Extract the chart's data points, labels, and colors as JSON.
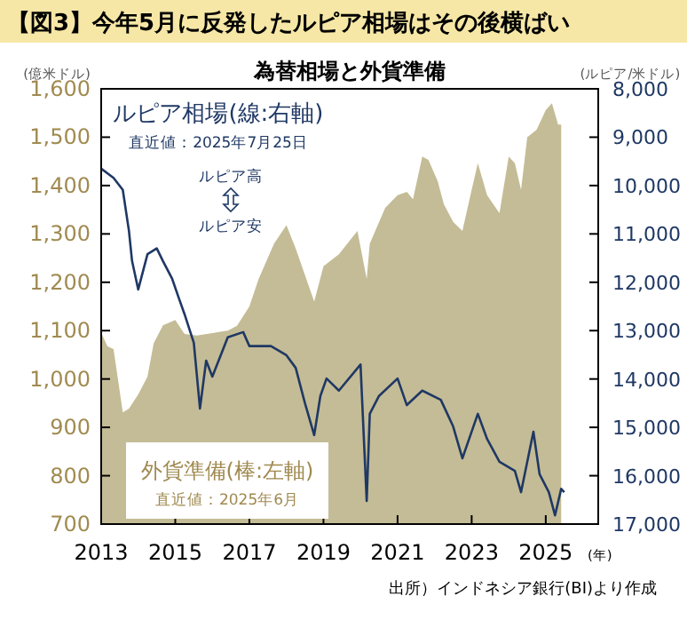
{
  "chart_data": {
    "type": "area",
    "title": "【図3】今年5月に反発したルピア相場はその後横ばい",
    "subtitle": "為替相場と外貨準備",
    "ylabel": "(億米ドル)",
    "y2label": "(ルピア/米ドル)",
    "xlabel": "(年)",
    "xlim": [
      "2013-01",
      "2026-06"
    ],
    "xticks": [
      {
        "value": "2013-01",
        "label": "2013"
      },
      {
        "value": "2015-01",
        "label": "2015"
      },
      {
        "value": "2017-01",
        "label": "2017"
      },
      {
        "value": "2019-01",
        "label": "2019"
      },
      {
        "value": "2021-01",
        "label": "2021"
      },
      {
        "value": "2023-01",
        "label": "2023"
      },
      {
        "value": "2025-01",
        "label": "2025"
      }
    ],
    "ylim": [
      700,
      1600
    ],
    "yticks": [
      {
        "value": 700,
        "label": "700"
      },
      {
        "value": 800,
        "label": "800"
      },
      {
        "value": 900,
        "label": "900"
      },
      {
        "value": 1000,
        "label": "1,000"
      },
      {
        "value": 1100,
        "label": "1,100"
      },
      {
        "value": 1200,
        "label": "1,200"
      },
      {
        "value": 1300,
        "label": "1,300"
      },
      {
        "value": 1400,
        "label": "1,400"
      },
      {
        "value": 1500,
        "label": "1,500"
      },
      {
        "value": 1600,
        "label": "1,600"
      }
    ],
    "y2lim": [
      17000,
      8000
    ],
    "y2ticks": [
      {
        "value": 8000,
        "label": "8,000"
      },
      {
        "value": 9000,
        "label": "9,000"
      },
      {
        "value": 10000,
        "label": "10,000"
      },
      {
        "value": 11000,
        "label": "11,000"
      },
      {
        "value": 12000,
        "label": "12,000"
      },
      {
        "value": 13000,
        "label": "13,000"
      },
      {
        "value": 14000,
        "label": "14,000"
      },
      {
        "value": 15000,
        "label": "15,000"
      },
      {
        "value": 16000,
        "label": "16,000"
      },
      {
        "value": 17000,
        "label": "17,000"
      }
    ],
    "legend": false,
    "grid": false,
    "series": [
      {
        "name": "外貨準備(棒:左軸)",
        "color": "#c4bc96",
        "x": [
          "2013-01",
          "2013-03",
          "2013-05",
          "2013-08",
          "2013-10",
          "2014-01",
          "2014-04",
          "2014-06",
          "2014-09",
          "2015-01",
          "2015-04",
          "2015-08",
          "2016-01",
          "2016-06",
          "2016-09",
          "2017-01",
          "2017-04",
          "2017-09",
          "2018-01",
          "2018-04",
          "2018-10",
          "2019-01",
          "2019-06",
          "2019-12",
          "2020-03",
          "2020-04",
          "2020-09",
          "2021-01",
          "2021-04",
          "2021-06",
          "2021-09",
          "2021-11",
          "2022-02",
          "2022-04",
          "2022-07",
          "2022-10",
          "2023-01",
          "2023-03",
          "2023-06",
          "2023-10",
          "2024-01",
          "2024-03",
          "2024-05",
          "2024-07",
          "2024-10",
          "2025-01",
          "2025-03",
          "2025-05",
          "2025-06"
        ],
        "values": [
          1096,
          1068,
          1062,
          931,
          939,
          968,
          1005,
          1074,
          1111,
          1122,
          1093,
          1090,
          1095,
          1100,
          1110,
          1150,
          1207,
          1280,
          1318,
          1270,
          1160,
          1233,
          1258,
          1306,
          1207,
          1280,
          1354,
          1380,
          1387,
          1372,
          1460,
          1453,
          1409,
          1361,
          1325,
          1306,
          1391,
          1446,
          1380,
          1343,
          1460,
          1446,
          1391,
          1500,
          1515,
          1556,
          1570,
          1526,
          1526
        ]
      },
      {
        "name": "ルピア相場(線:右軸)",
        "type": "line",
        "axis": "y2",
        "color": "#1f3864",
        "x": [
          "2013-01",
          "2013-05",
          "2013-08",
          "2013-10",
          "2013-11",
          "2014-01",
          "2014-04",
          "2014-07",
          "2014-09",
          "2014-12",
          "2015-02",
          "2015-04",
          "2015-07",
          "2015-09",
          "2015-11",
          "2016-01",
          "2016-06",
          "2016-11",
          "2017-01",
          "2017-08",
          "2018-01",
          "2018-04",
          "2018-07",
          "2018-10",
          "2018-12",
          "2019-02",
          "2019-06",
          "2020-01",
          "2020-03",
          "2020-04",
          "2020-07",
          "2021-01",
          "2021-04",
          "2021-09",
          "2022-03",
          "2022-07",
          "2022-10",
          "2023-03",
          "2023-06",
          "2023-10",
          "2024-03",
          "2024-05",
          "2024-09",
          "2024-11",
          "2025-02",
          "2025-04",
          "2025-06",
          "2025-07"
        ],
        "values": [
          9650,
          9840,
          10090,
          10940,
          11560,
          12150,
          11420,
          11300,
          11560,
          11930,
          12300,
          12660,
          13250,
          14610,
          13620,
          13950,
          13140,
          13030,
          13320,
          13320,
          13510,
          13770,
          14500,
          15160,
          14350,
          13990,
          14240,
          13700,
          16520,
          14720,
          14350,
          13990,
          14540,
          14240,
          14430,
          14980,
          15640,
          14720,
          15240,
          15710,
          15900,
          16340,
          15090,
          15970,
          16340,
          16820,
          16270,
          16340
        ]
      }
    ],
    "annotations": [
      "直近値：2025年7月25日",
      "ルピア高",
      "ルピア安",
      "直近値：2025年6月",
      "出所）インドネシア銀行(BI)より作成"
    ]
  }
}
